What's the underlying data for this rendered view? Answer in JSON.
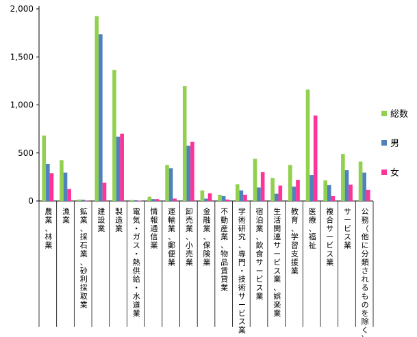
{
  "chart_data": {
    "type": "bar",
    "title": "",
    "xlabel": "",
    "ylabel": "",
    "ylim": [
      0,
      2000
    ],
    "yticks": [
      0,
      500,
      1000,
      1500,
      2000
    ],
    "ytick_labels": [
      "0",
      "500",
      "1,000",
      "1,500",
      "2,000"
    ],
    "grid": false,
    "legend_position": "right",
    "categories": [
      "農業、林業",
      "漁業",
      "鉱業、採石業、砂利採取業",
      "建設業",
      "製造業",
      "電気・ガス・熱供給・水道業",
      "情報通信業",
      "運輸業、郵便業",
      "卸売業、小売業",
      "金融業、保険業",
      "不動産業、物品賃貸業",
      "学術研究、専門・技術サービス業",
      "宿泊業、飲食サービス業",
      "生活関連サービス業、娯楽業",
      "教育、学習支援業",
      "医療、福祉",
      "複合サービス業",
      "サービス業",
      "公務（他に分類されるものを除く）"
    ],
    "series": [
      {
        "name": "総数",
        "color": "#92d050",
        "values": [
          680,
          425,
          15,
          1925,
          1365,
          10,
          45,
          375,
          1195,
          110,
          65,
          175,
          440,
          240,
          375,
          1160,
          215,
          490,
          410
        ]
      },
      {
        "name": "男",
        "color": "#4f81bd",
        "values": [
          385,
          295,
          12,
          1735,
          670,
          8,
          20,
          340,
          575,
          25,
          50,
          110,
          140,
          75,
          150,
          270,
          165,
          320,
          295
        ]
      },
      {
        "name": "女",
        "color": "#ff3399",
        "values": [
          290,
          125,
          5,
          190,
          700,
          3,
          20,
          25,
          615,
          80,
          15,
          65,
          300,
          160,
          220,
          890,
          50,
          170,
          115
        ]
      }
    ]
  }
}
